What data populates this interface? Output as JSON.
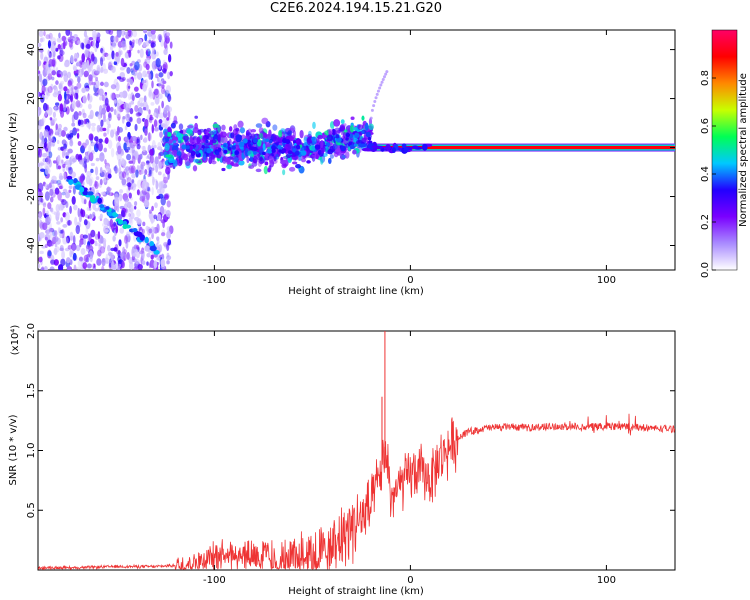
{
  "title": "C2E6.2024.194.15.21.G20",
  "chart_data": [
    {
      "type": "heatmap",
      "xlabel": "Height of straight line (km)",
      "ylabel": "Frequency (Hz)",
      "xlim": [
        -190,
        135
      ],
      "ylim": [
        -50,
        48
      ],
      "x_ticks": [
        -100,
        0,
        100
      ],
      "y_ticks": [
        -40,
        -20,
        0,
        20,
        40
      ],
      "colorbar": {
        "label": "Normalized spectral amplitude",
        "range": [
          0,
          1
        ],
        "ticks": [
          0.0,
          0.2,
          0.4,
          0.6,
          0.8
        ],
        "colors": [
          "#ffffff",
          "#a98bff",
          "#7a00ff",
          "#2200ff",
          "#00c8ff",
          "#00ff55",
          "#c8ff00",
          "#ff8800",
          "#ff0000",
          "#ff0066"
        ]
      },
      "features": [
        {
          "name": "carrier",
          "x": [
            -22,
            135
          ],
          "y": [
            0,
            0
          ],
          "amplitude": 0.9
        },
        {
          "name": "descending trace",
          "x": [
            -175,
            -128
          ],
          "y": [
            -12,
            -43
          ],
          "amplitude": 0.45
        },
        {
          "name": "rising arc",
          "x": [
            -20,
            -12
          ],
          "y": [
            12,
            31
          ],
          "amplitude": 0.2
        }
      ]
    },
    {
      "type": "line",
      "xlabel": "Height of straight line (km)",
      "ylabel": "SNR (10 * v/v)",
      "y_multiplier": "(x10⁴)",
      "xlim": [
        -190,
        135
      ],
      "ylim": [
        0,
        2.0
      ],
      "x_ticks": [
        -100,
        0,
        100
      ],
      "y_ticks": [
        0.5,
        1.0,
        1.5,
        2.0
      ],
      "color": "#ee3333",
      "x": [
        -190,
        -170,
        -150,
        -130,
        -120,
        -110,
        -100,
        -90,
        -80,
        -70,
        -60,
        -50,
        -40,
        -30,
        -25,
        -20,
        -15,
        -12,
        -10,
        -5,
        0,
        5,
        10,
        15,
        20,
        25,
        30,
        40,
        50,
        60,
        70,
        80,
        90,
        100,
        110,
        120,
        135
      ],
      "y": [
        0.02,
        0.02,
        0.03,
        0.03,
        0.04,
        0.07,
        0.13,
        0.16,
        0.14,
        0.1,
        0.09,
        0.13,
        0.2,
        0.4,
        0.45,
        0.55,
        0.85,
        1.0,
        0.62,
        0.72,
        0.82,
        0.85,
        0.78,
        0.95,
        1.05,
        1.12,
        1.16,
        1.19,
        1.2,
        1.19,
        1.2,
        1.2,
        1.2,
        1.2,
        1.2,
        1.19,
        1.18
      ]
    }
  ]
}
